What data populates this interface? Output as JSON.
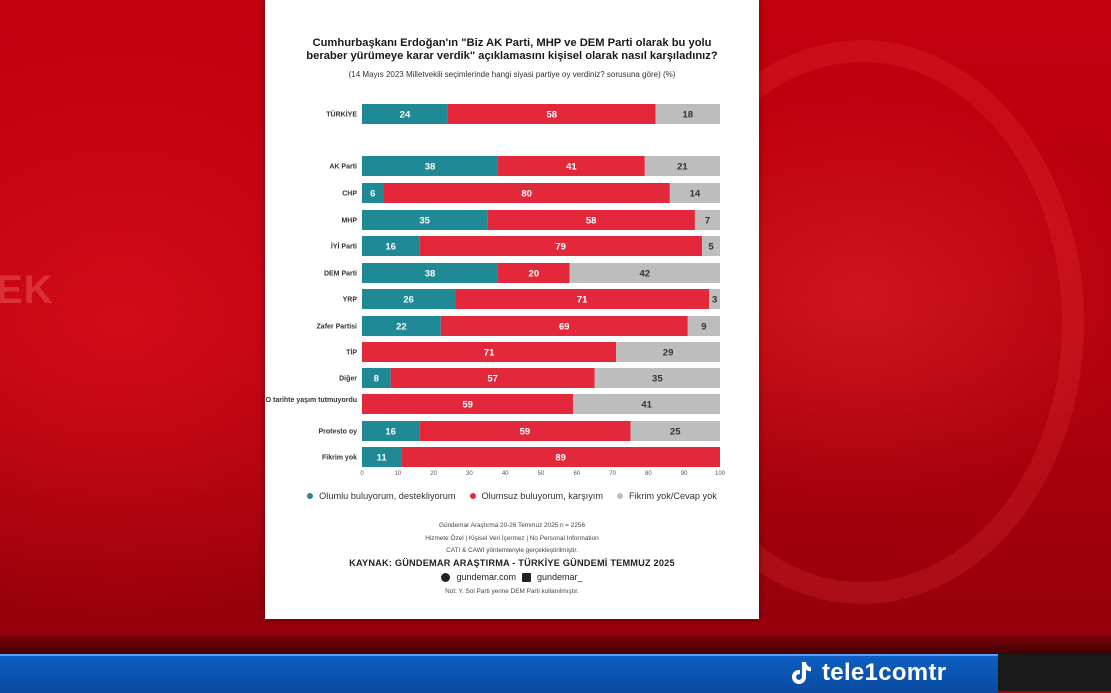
{
  "overlay": {
    "bg_word": "EK",
    "brand": "tele1comtr"
  },
  "card": {
    "title_lines": [
      "Cumhurbaşkanı Erdoğan'ın \"Biz AK Parti, MHP ve DEM Parti olarak bu yolu",
      "beraber yürümeye karar verdik\" açıklamasını kişisel olarak nasıl karşıladınız?"
    ],
    "subtitle": "(14 Mayıs 2023 Milletvekili seçimlerinde hangi siyasi partiye oy verdiniz? sorusuna göre) (%)",
    "legend": [
      "Olumlu buluyorum, destekliyorum",
      "Olumsuz buluyorum, karşıyım",
      "Fikrim yok/Cevap yok"
    ],
    "footer": {
      "method": "Gündemar Araştırma 20-26 Temmuz 2025 n = 2256",
      "service": "Hizmete Özel | Kişisel Veri İçermez | No Personal Information",
      "cati": "CATI & CAWI yöntemleriyle gerçekleştirilmiştir.",
      "source": "KAYNAK: GÜNDEMAR ARAŞTIRMA - TÜRKİYE GÜNDEMİ TEMMUZ 2025",
      "web": "gundemar.com",
      "x_handle": "gundemar_",
      "note": "Not: Y. Sol Parti yerine DEM Parti kullanılmıştır."
    }
  },
  "colors": {
    "positive": "#1f8a96",
    "negative": "#e3283b",
    "neutral": "#bdbdbd"
  },
  "chart_data": {
    "type": "bar",
    "orientation": "horizontal",
    "stacked": true,
    "categories": [
      "TÜRKİYE",
      "AK Parti",
      "CHP",
      "MHP",
      "İYİ Parti",
      "DEM Parti",
      "YRP",
      "Zafer Partisi",
      "TİP",
      "Diğer",
      "O tarihte yaşım tutmuyordu",
      "Protesto oy",
      "Fikrim yok"
    ],
    "series": [
      {
        "name": "Olumlu buluyorum, destekliyorum",
        "values": [
          24,
          38,
          6,
          35,
          16,
          38,
          26,
          22,
          0,
          8,
          0,
          16,
          11
        ]
      },
      {
        "name": "Olumsuz buluyorum, karşıyım",
        "values": [
          58,
          41,
          80,
          58,
          79,
          20,
          71,
          69,
          71,
          57,
          59,
          59,
          89
        ]
      },
      {
        "name": "Fikrim yok/Cevap yok",
        "values": [
          18,
          21,
          14,
          7,
          5,
          42,
          3,
          9,
          29,
          35,
          41,
          25,
          0
        ]
      }
    ],
    "xlim": [
      0,
      100
    ],
    "xticks": [
      0,
      10,
      20,
      30,
      40,
      50,
      60,
      70,
      80,
      90,
      100
    ],
    "legend_position": "bottom"
  }
}
